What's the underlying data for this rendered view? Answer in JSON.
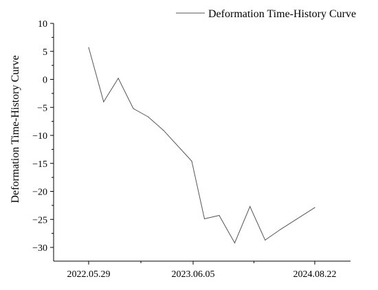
{
  "chart_data": {
    "type": "line",
    "title": "",
    "xlabel": "",
    "ylabel": "Deformation Time-History Curve",
    "ylim": [
      -33,
      10
    ],
    "y_ticks": [
      10,
      5,
      0,
      -5,
      -10,
      -15,
      -20,
      -25,
      -30
    ],
    "y_tick_labels": [
      "10",
      "5",
      "0",
      "−5",
      "−10",
      "−15",
      "−20",
      "−25",
      "−30"
    ],
    "x_tick_labels": [
      "2022.05.29",
      "2023.06.05",
      "2024.08.22"
    ],
    "legend_position": "top-right",
    "grid": false,
    "series": [
      {
        "name": "Deformation Time-History Curve",
        "color": "#555555",
        "x": [
          "2022-05-29",
          "2022-07-22",
          "2022-09-13",
          "2022-11-06",
          "2022-12-30",
          "2023-02-23",
          "2023-06-05",
          "2023-07-21",
          "2023-09-12",
          "2023-11-07",
          "2024-01-01",
          "2024-02-25",
          "2024-04-20",
          "2024-08-22"
        ],
        "values": [
          5.7,
          -4.0,
          0.2,
          -5.2,
          -6.7,
          -9.1,
          -14.6,
          -24.9,
          -24.3,
          -29.2,
          -22.7,
          -28.7,
          -26.8,
          -22.9
        ]
      }
    ]
  }
}
